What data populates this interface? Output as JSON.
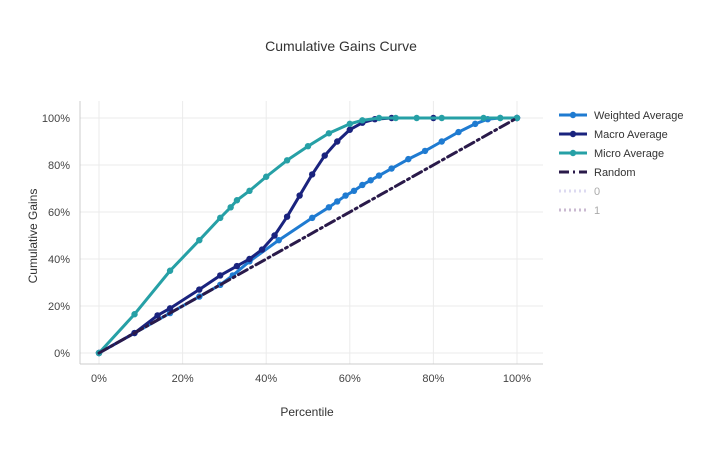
{
  "chart_data": {
    "type": "line",
    "title": "Cumulative Gains Curve",
    "xlabel": "Percentile",
    "ylabel": "Cumulative Gains",
    "xlim": [
      0,
      1
    ],
    "ylim": [
      0,
      1
    ],
    "x_ticks": [
      {
        "value": 0,
        "label": "0%"
      },
      {
        "value": 0.2,
        "label": "20%"
      },
      {
        "value": 0.4,
        "label": "40%"
      },
      {
        "value": 0.6,
        "label": "60%"
      },
      {
        "value": 0.8,
        "label": "80%"
      },
      {
        "value": 1,
        "label": "100%"
      }
    ],
    "y_ticks": [
      {
        "value": 0,
        "label": "0%"
      },
      {
        "value": 0.2,
        "label": "20%"
      },
      {
        "value": 0.4,
        "label": "40%"
      },
      {
        "value": 0.6,
        "label": "60%"
      },
      {
        "value": 0.8,
        "label": "80%"
      },
      {
        "value": 1,
        "label": "100%"
      }
    ],
    "grid": true,
    "legend_position": "right",
    "series": [
      {
        "name": "Weighted Average",
        "color": "#1f7bd1",
        "style": "solid",
        "markers": true,
        "legend_visible": true,
        "points": [
          [
            0,
            0
          ],
          [
            0.085,
            0.085
          ],
          [
            0.17,
            0.17
          ],
          [
            0.24,
            0.24
          ],
          [
            0.29,
            0.29
          ],
          [
            0.32,
            0.33
          ],
          [
            0.36,
            0.39
          ],
          [
            0.43,
            0.48
          ],
          [
            0.51,
            0.575
          ],
          [
            0.55,
            0.62
          ],
          [
            0.57,
            0.645
          ],
          [
            0.59,
            0.67
          ],
          [
            0.61,
            0.69
          ],
          [
            0.63,
            0.715
          ],
          [
            0.65,
            0.735
          ],
          [
            0.67,
            0.755
          ],
          [
            0.7,
            0.785
          ],
          [
            0.74,
            0.825
          ],
          [
            0.78,
            0.86
          ],
          [
            0.82,
            0.9
          ],
          [
            0.86,
            0.94
          ],
          [
            0.9,
            0.975
          ],
          [
            0.93,
            0.995
          ],
          [
            0.96,
            1.0
          ],
          [
            1.0,
            1.0
          ]
        ]
      },
      {
        "name": "Macro Average",
        "color": "#1a237e",
        "style": "solid",
        "markers": true,
        "legend_visible": true,
        "points": [
          [
            0,
            0
          ],
          [
            0.085,
            0.085
          ],
          [
            0.14,
            0.16
          ],
          [
            0.17,
            0.19
          ],
          [
            0.24,
            0.27
          ],
          [
            0.29,
            0.33
          ],
          [
            0.33,
            0.37
          ],
          [
            0.36,
            0.4
          ],
          [
            0.39,
            0.44
          ],
          [
            0.42,
            0.5
          ],
          [
            0.45,
            0.58
          ],
          [
            0.48,
            0.67
          ],
          [
            0.51,
            0.76
          ],
          [
            0.54,
            0.84
          ],
          [
            0.57,
            0.9
          ],
          [
            0.6,
            0.95
          ],
          [
            0.63,
            0.98
          ],
          [
            0.66,
            0.995
          ],
          [
            0.7,
            1.0
          ],
          [
            0.8,
            1.0
          ],
          [
            1.0,
            1.0
          ]
        ]
      },
      {
        "name": "Micro Average",
        "color": "#26a0a6",
        "style": "solid",
        "markers": true,
        "legend_visible": true,
        "points": [
          [
            0,
            0
          ],
          [
            0.085,
            0.165
          ],
          [
            0.17,
            0.35
          ],
          [
            0.24,
            0.48
          ],
          [
            0.29,
            0.575
          ],
          [
            0.315,
            0.62
          ],
          [
            0.33,
            0.65
          ],
          [
            0.36,
            0.69
          ],
          [
            0.4,
            0.75
          ],
          [
            0.45,
            0.82
          ],
          [
            0.5,
            0.88
          ],
          [
            0.55,
            0.935
          ],
          [
            0.6,
            0.975
          ],
          [
            0.63,
            0.99
          ],
          [
            0.67,
            1.0
          ],
          [
            0.71,
            1.0
          ],
          [
            0.76,
            1.0
          ],
          [
            0.82,
            1.0
          ],
          [
            0.92,
            1.0
          ],
          [
            0.96,
            1.0
          ],
          [
            1.0,
            1.0
          ]
        ]
      },
      {
        "name": "Random",
        "color": "#2a1a4a",
        "style": "dashdot",
        "markers": false,
        "legend_visible": true,
        "points": [
          [
            0,
            0
          ],
          [
            1,
            1
          ]
        ]
      },
      {
        "name": "0",
        "color": "#c5c3e8",
        "style": "dot",
        "markers": false,
        "legend_visible": false,
        "points": []
      },
      {
        "name": "1",
        "color": "#a78bb4",
        "style": "dot",
        "markers": false,
        "legend_visible": false,
        "points": []
      }
    ]
  }
}
